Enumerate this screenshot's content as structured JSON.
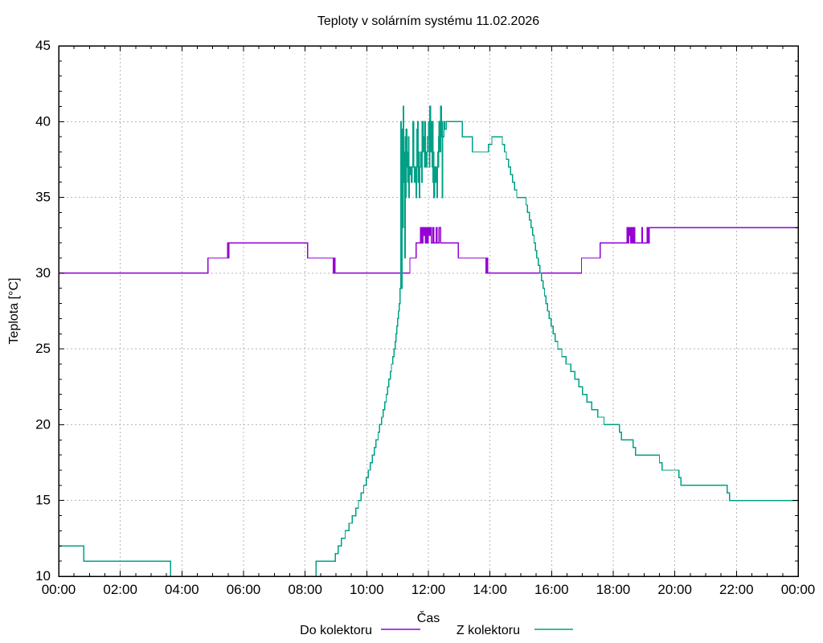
{
  "title": "Teploty v solárním systému 11.02.2026",
  "x_axis": {
    "label": "Čas",
    "tick_labels": [
      "00:00",
      "02:00",
      "04:00",
      "06:00",
      "08:00",
      "10:00",
      "12:00",
      "14:00",
      "16:00",
      "18:00",
      "20:00",
      "22:00",
      "00:00"
    ],
    "min_hours": 0,
    "max_hours": 24,
    "major_step_hours": 2,
    "minor_step_hours": 0.5
  },
  "y_axis": {
    "label": "Teplota [°C]",
    "tick_labels": [
      "10",
      "15",
      "20",
      "25",
      "30",
      "35",
      "40",
      "45"
    ],
    "min": 10,
    "max": 45,
    "major_step": 5,
    "minor_step": 1
  },
  "colors": {
    "do_kolektoru": "#9400D3",
    "z_kolektoru": "#00A086",
    "grid": "#b5b5b5",
    "axis": "#000000",
    "background": "#ffffff"
  },
  "chart_data": {
    "type": "line",
    "style": "steps-post",
    "title": "Teploty v solárním systému 11.02.2026",
    "xlabel": "Čas",
    "ylabel": "Teplota [°C]",
    "x_unit": "hours",
    "xlim": [
      0,
      24
    ],
    "ylim": [
      10,
      45
    ],
    "grid": true,
    "legend_position": "bottom-center",
    "series": [
      {
        "name": "Do kolektoru",
        "color": "#9400D3",
        "points": [
          [
            0,
            30
          ],
          [
            4.85,
            31
          ],
          [
            5.48,
            32
          ],
          [
            5.5,
            31
          ],
          [
            5.53,
            32
          ],
          [
            8.08,
            31
          ],
          [
            8.92,
            30
          ],
          [
            8.95,
            31
          ],
          [
            8.97,
            30
          ],
          [
            11.4,
            31
          ],
          [
            11.6,
            32
          ],
          [
            11.75,
            33
          ],
          [
            11.78,
            32
          ],
          [
            11.82,
            33
          ],
          [
            11.85,
            32.5
          ],
          [
            11.87,
            33
          ],
          [
            11.9,
            32
          ],
          [
            11.93,
            33
          ],
          [
            11.97,
            32
          ],
          [
            12.0,
            33
          ],
          [
            12.03,
            32.5
          ],
          [
            12.07,
            33
          ],
          [
            12.1,
            32
          ],
          [
            12.15,
            33
          ],
          [
            12.18,
            32
          ],
          [
            12.25,
            33
          ],
          [
            12.28,
            32
          ],
          [
            12.35,
            33
          ],
          [
            12.4,
            32
          ],
          [
            12.97,
            31
          ],
          [
            13.87,
            30
          ],
          [
            13.9,
            31
          ],
          [
            13.92,
            30
          ],
          [
            16.97,
            31
          ],
          [
            17.58,
            32
          ],
          [
            18.45,
            33
          ],
          [
            18.47,
            32
          ],
          [
            18.5,
            33
          ],
          [
            18.52,
            32.5
          ],
          [
            18.55,
            33
          ],
          [
            18.57,
            32
          ],
          [
            18.6,
            33
          ],
          [
            18.63,
            32
          ],
          [
            18.67,
            33
          ],
          [
            18.7,
            32
          ],
          [
            18.93,
            33
          ],
          [
            18.95,
            32
          ],
          [
            19.1,
            33
          ],
          [
            19.13,
            32
          ],
          [
            19.17,
            33
          ],
          [
            19.22,
            33
          ]
        ]
      },
      {
        "name": "Z kolektoru",
        "color": "#00A086",
        "points": [
          [
            0,
            12
          ],
          [
            0.82,
            11
          ],
          [
            3.63,
            9
          ],
          [
            8.35,
            11
          ],
          [
            8.98,
            11.5
          ],
          [
            9.07,
            12
          ],
          [
            9.18,
            12.5
          ],
          [
            9.3,
            13
          ],
          [
            9.42,
            13.5
          ],
          [
            9.53,
            14
          ],
          [
            9.65,
            14.5
          ],
          [
            9.73,
            15
          ],
          [
            9.82,
            15.5
          ],
          [
            9.9,
            16
          ],
          [
            9.98,
            16.5
          ],
          [
            10.05,
            17
          ],
          [
            10.12,
            17.5
          ],
          [
            10.18,
            18
          ],
          [
            10.25,
            18.5
          ],
          [
            10.3,
            19
          ],
          [
            10.37,
            19.5
          ],
          [
            10.42,
            20
          ],
          [
            10.48,
            20.5
          ],
          [
            10.53,
            21
          ],
          [
            10.58,
            21.5
          ],
          [
            10.63,
            22
          ],
          [
            10.68,
            22.5
          ],
          [
            10.72,
            23
          ],
          [
            10.77,
            23.5
          ],
          [
            10.8,
            24
          ],
          [
            10.85,
            24.5
          ],
          [
            10.88,
            25
          ],
          [
            10.92,
            25.5
          ],
          [
            10.95,
            26
          ],
          [
            10.98,
            26.5
          ],
          [
            11.0,
            27
          ],
          [
            11.03,
            27.5
          ],
          [
            11.05,
            28
          ],
          [
            11.08,
            29
          ],
          [
            11.1,
            40
          ],
          [
            11.12,
            34
          ],
          [
            11.13,
            29
          ],
          [
            11.15,
            39.5
          ],
          [
            11.17,
            33
          ],
          [
            11.18,
            41
          ],
          [
            11.2,
            36
          ],
          [
            11.22,
            38
          ],
          [
            11.23,
            31
          ],
          [
            11.25,
            39
          ],
          [
            11.27,
            35
          ],
          [
            11.28,
            39.5
          ],
          [
            11.3,
            37
          ],
          [
            11.32,
            38
          ],
          [
            11.33,
            36
          ],
          [
            11.35,
            39
          ],
          [
            11.37,
            35
          ],
          [
            11.38,
            37
          ],
          [
            11.4,
            36.5
          ],
          [
            11.42,
            37
          ],
          [
            11.45,
            36
          ],
          [
            11.47,
            37
          ],
          [
            11.5,
            40
          ],
          [
            11.52,
            37
          ],
          [
            11.55,
            36
          ],
          [
            11.57,
            37
          ],
          [
            11.6,
            35
          ],
          [
            11.62,
            37
          ],
          [
            11.63,
            39.5
          ],
          [
            11.65,
            40
          ],
          [
            11.67,
            36
          ],
          [
            11.68,
            38
          ],
          [
            11.7,
            35
          ],
          [
            11.72,
            37
          ],
          [
            11.75,
            38
          ],
          [
            11.77,
            37
          ],
          [
            11.78,
            36
          ],
          [
            11.8,
            40
          ],
          [
            11.82,
            38
          ],
          [
            11.85,
            39
          ],
          [
            11.87,
            37
          ],
          [
            11.88,
            40
          ],
          [
            11.9,
            38
          ],
          [
            11.92,
            37
          ],
          [
            11.95,
            38
          ],
          [
            11.97,
            39
          ],
          [
            12.0,
            40
          ],
          [
            12.02,
            38
          ],
          [
            12.03,
            37
          ],
          [
            12.05,
            41
          ],
          [
            12.07,
            38
          ],
          [
            12.08,
            40
          ],
          [
            12.1,
            39
          ],
          [
            12.12,
            37
          ],
          [
            12.13,
            40
          ],
          [
            12.15,
            36
          ],
          [
            12.17,
            38
          ],
          [
            12.18,
            35
          ],
          [
            12.2,
            37
          ],
          [
            12.22,
            36
          ],
          [
            12.25,
            37
          ],
          [
            12.28,
            35
          ],
          [
            12.3,
            38
          ],
          [
            12.32,
            37
          ],
          [
            12.33,
            39
          ],
          [
            12.35,
            40
          ],
          [
            12.37,
            38
          ],
          [
            12.4,
            41
          ],
          [
            12.42,
            39
          ],
          [
            12.43,
            40
          ],
          [
            12.45,
            35
          ],
          [
            12.47,
            39
          ],
          [
            12.5,
            40
          ],
          [
            12.53,
            39.5
          ],
          [
            12.58,
            40
          ],
          [
            13.1,
            39
          ],
          [
            13.43,
            38
          ],
          [
            13.95,
            38.5
          ],
          [
            14.06,
            39
          ],
          [
            14.4,
            38.5
          ],
          [
            14.47,
            38
          ],
          [
            14.53,
            37.5
          ],
          [
            14.6,
            37
          ],
          [
            14.67,
            36.5
          ],
          [
            14.73,
            36
          ],
          [
            14.8,
            35.5
          ],
          [
            14.87,
            35
          ],
          [
            15.17,
            34.5
          ],
          [
            15.22,
            34
          ],
          [
            15.28,
            33.5
          ],
          [
            15.33,
            33
          ],
          [
            15.38,
            32.5
          ],
          [
            15.43,
            32
          ],
          [
            15.48,
            31.5
          ],
          [
            15.52,
            31
          ],
          [
            15.57,
            30.5
          ],
          [
            15.62,
            30
          ],
          [
            15.67,
            29.5
          ],
          [
            15.72,
            29
          ],
          [
            15.77,
            28.5
          ],
          [
            15.82,
            28
          ],
          [
            15.87,
            27.5
          ],
          [
            15.92,
            27
          ],
          [
            15.98,
            26.5
          ],
          [
            16.05,
            26
          ],
          [
            16.12,
            25.5
          ],
          [
            16.2,
            25
          ],
          [
            16.33,
            24.5
          ],
          [
            16.47,
            24
          ],
          [
            16.62,
            23.5
          ],
          [
            16.75,
            23
          ],
          [
            16.88,
            22.5
          ],
          [
            17.0,
            22
          ],
          [
            17.15,
            21.5
          ],
          [
            17.3,
            21
          ],
          [
            17.5,
            20.5
          ],
          [
            17.7,
            20
          ],
          [
            18.2,
            19.5
          ],
          [
            18.27,
            19
          ],
          [
            18.65,
            18.5
          ],
          [
            18.72,
            18
          ],
          [
            19.5,
            17.5
          ],
          [
            19.58,
            17
          ],
          [
            20.13,
            16.5
          ],
          [
            20.2,
            16
          ],
          [
            21.7,
            15.5
          ],
          [
            21.78,
            15
          ]
        ]
      }
    ]
  }
}
